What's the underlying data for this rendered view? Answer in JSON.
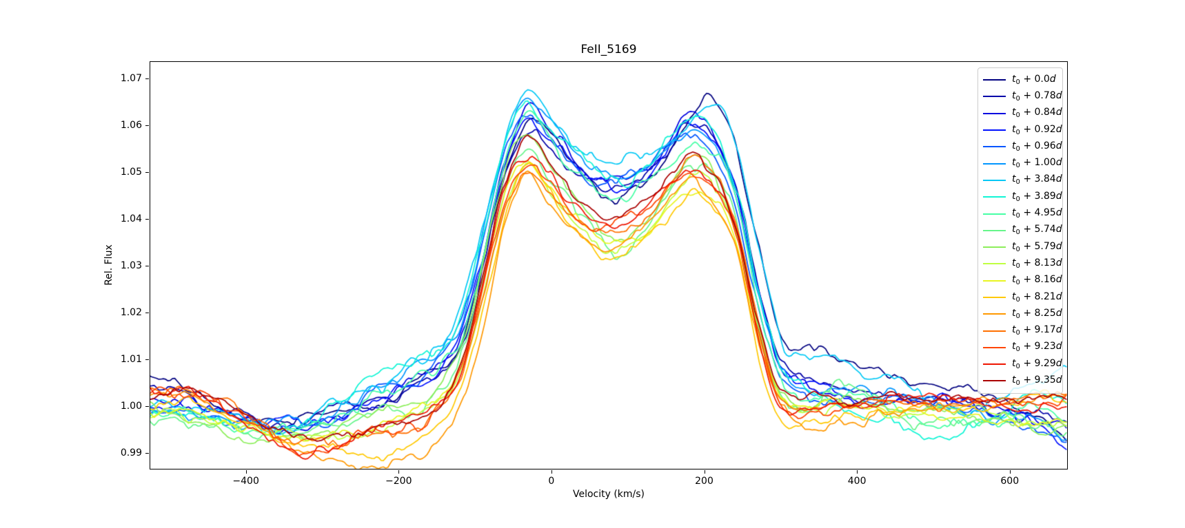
{
  "figure": {
    "title": "FeII_5169"
  },
  "chart_data": {
    "type": "line",
    "title": "FeII_5169",
    "xlabel": "Velocity (km/s)",
    "ylabel": "Rel. Flux",
    "xlim": [
      -526,
      676
    ],
    "ylim": [
      0.9865,
      1.0737
    ],
    "grid": false,
    "legend_position": "upper right",
    "legend_label_format": "t0 + {offset}d",
    "xticks": [
      -400,
      -200,
      0,
      200,
      400,
      600
    ],
    "xtick_labels": [
      "−400",
      "−200",
      "0",
      "200",
      "400",
      "600"
    ],
    "yticks": [
      0.99,
      1.0,
      1.01,
      1.02,
      1.03,
      1.04,
      1.05,
      1.06,
      1.07
    ],
    "ytick_labels": [
      "0.99",
      "1.00",
      "1.01",
      "1.02",
      "1.03",
      "1.04",
      "1.05",
      "1.06",
      "1.07"
    ],
    "x_knots": [
      -526,
      -480,
      -430,
      -380,
      -330,
      -280,
      -230,
      -180,
      -150,
      -120,
      -90,
      -60,
      -30,
      0,
      40,
      80,
      120,
      150,
      180,
      210,
      240,
      270,
      300,
      340,
      380,
      430,
      480,
      530,
      580,
      630,
      676
    ],
    "series": [
      {
        "name": "t0 + 0.0d",
        "offset": "0.0",
        "color": "#000080",
        "noise": 0.0011,
        "seed": 1,
        "values": [
          1.006,
          1.0035,
          0.999,
          0.9968,
          0.9972,
          0.999,
          1.0005,
          1.004,
          1.0065,
          1.012,
          1.03,
          1.051,
          1.0605,
          1.057,
          1.05,
          1.0448,
          1.047,
          1.053,
          1.061,
          1.065,
          1.0555,
          1.035,
          1.015,
          1.012,
          1.009,
          1.006,
          1.004,
          1.003,
          1.0005,
          0.9975,
          0.993
        ]
      },
      {
        "name": "t0 + 0.78d",
        "offset": "0.78",
        "color": "#0000A8",
        "noise": 0.0011,
        "seed": 2,
        "values": [
          1.003,
          1.0015,
          0.9985,
          0.9965,
          0.9968,
          0.9985,
          1.0,
          1.0035,
          1.006,
          1.011,
          1.028,
          1.049,
          1.059,
          1.056,
          1.0495,
          1.0468,
          1.048,
          1.053,
          1.06,
          1.0575,
          1.048,
          1.026,
          1.009,
          1.005,
          1.003,
          1.002,
          1.0015,
          1.001,
          1.0,
          0.9985,
          0.996
        ]
      },
      {
        "name": "t0 + 0.84d",
        "offset": "0.84",
        "color": "#0000E0",
        "noise": 0.0011,
        "seed": 3,
        "values": [
          1.002,
          1.0005,
          0.998,
          0.996,
          0.9965,
          0.9985,
          1.0005,
          1.0045,
          1.0075,
          1.013,
          1.031,
          1.053,
          1.0635,
          1.059,
          1.051,
          1.0483,
          1.0495,
          1.055,
          1.0625,
          1.059,
          1.049,
          1.027,
          1.0095,
          1.0045,
          1.0025,
          1.0018,
          1.001,
          1.0005,
          0.9995,
          0.9975,
          0.994
        ]
      },
      {
        "name": "t0 + 0.92d",
        "offset": "0.92",
        "color": "#0010FF",
        "noise": 0.0011,
        "seed": 4,
        "values": [
          1.001,
          1.0,
          0.9975,
          0.9958,
          0.9962,
          0.998,
          1.0008,
          1.005,
          1.008,
          1.014,
          1.032,
          1.054,
          1.062,
          1.058,
          1.0505,
          1.0475,
          1.049,
          1.0545,
          1.061,
          1.058,
          1.047,
          1.025,
          1.008,
          1.004,
          1.0022,
          1.0012,
          1.0008,
          1.0,
          0.999,
          0.996,
          0.99
        ]
      },
      {
        "name": "t0 + 0.96d",
        "offset": "0.96",
        "color": "#0055FF",
        "noise": 0.0011,
        "seed": 5,
        "values": [
          1.0005,
          0.9995,
          0.9972,
          0.9955,
          0.996,
          0.9985,
          1.0015,
          1.006,
          1.0095,
          1.016,
          1.034,
          1.055,
          1.0615,
          1.0575,
          1.05,
          1.0495,
          1.0505,
          1.055,
          1.058,
          1.0555,
          1.045,
          1.023,
          1.007,
          1.0035,
          1.002,
          1.001,
          1.0005,
          1.0,
          0.9988,
          0.9965,
          0.9935
        ]
      },
      {
        "name": "t0 + 1.00d",
        "offset": "1.00",
        "color": "#0095FF",
        "noise": 0.0012,
        "seed": 6,
        "values": [
          1.0,
          0.999,
          0.997,
          0.9958,
          0.9965,
          0.9995,
          1.003,
          1.008,
          1.011,
          1.018,
          1.036,
          1.056,
          1.064,
          1.059,
          1.051,
          1.049,
          1.051,
          1.0555,
          1.06,
          1.057,
          1.046,
          1.024,
          1.0075,
          1.004,
          1.0025,
          1.0015,
          1.0005,
          0.9998,
          0.9985,
          0.996,
          0.9925
        ]
      },
      {
        "name": "t0 + 3.84d",
        "offset": "3.84",
        "color": "#00C8F5",
        "noise": 0.0013,
        "seed": 7,
        "values": [
          1.0,
          0.9995,
          0.9975,
          0.996,
          0.997,
          1.0005,
          1.005,
          1.0095,
          1.0115,
          1.019,
          1.038,
          1.059,
          1.0685,
          1.062,
          1.053,
          1.0515,
          1.053,
          1.057,
          1.061,
          1.064,
          1.056,
          1.033,
          1.013,
          1.009,
          1.0095,
          1.006,
          1.001,
          0.9985,
          1.001,
          1.006,
          1.0085
        ]
      },
      {
        "name": "t0 + 3.89d",
        "offset": "3.89",
        "color": "#10F5D5",
        "noise": 0.0013,
        "seed": 8,
        "values": [
          0.9985,
          0.998,
          0.9965,
          0.9955,
          0.997,
          1.001,
          1.006,
          1.01,
          1.012,
          1.0185,
          1.037,
          1.058,
          1.0655,
          1.06,
          1.0525,
          1.047,
          1.05,
          1.0555,
          1.06,
          1.0575,
          1.047,
          1.025,
          1.008,
          1.003,
          1.0005,
          0.9975,
          0.9945,
          0.995,
          0.999,
          1.002,
          0.9995
        ]
      },
      {
        "name": "t0 + 4.95d",
        "offset": "4.95",
        "color": "#45FFA5",
        "noise": 0.0013,
        "seed": 9,
        "values": [
          0.999,
          0.9985,
          0.996,
          0.9945,
          0.9955,
          0.999,
          1.003,
          1.007,
          1.009,
          1.015,
          1.033,
          1.054,
          1.0625,
          1.057,
          1.049,
          1.0445,
          1.047,
          1.052,
          1.0565,
          1.0545,
          1.045,
          1.023,
          1.006,
          1.002,
          1.004,
          1.001,
          0.997,
          0.996,
          0.998,
          0.999,
          0.997
        ]
      },
      {
        "name": "t0 + 5.74d",
        "offset": "5.74",
        "color": "#65F58A",
        "noise": 0.0013,
        "seed": 10,
        "values": [
          0.9975,
          0.9965,
          0.9945,
          0.993,
          0.9932,
          0.995,
          0.9975,
          1.0005,
          1.003,
          1.009,
          1.027,
          1.048,
          1.0565,
          1.05,
          1.041,
          1.033,
          1.037,
          1.044,
          1.05,
          1.0485,
          1.039,
          1.017,
          1.002,
          1.0,
          1.006,
          1.002,
          0.998,
          0.9985,
          0.9975,
          0.995,
          0.9935
        ]
      },
      {
        "name": "t0 + 5.79d",
        "offset": "5.79",
        "color": "#8CEE5A",
        "noise": 0.0012,
        "seed": 11,
        "values": [
          0.9985,
          0.9975,
          0.995,
          0.9935,
          0.9938,
          0.9955,
          0.9985,
          1.0015,
          1.004,
          1.0105,
          1.029,
          1.05,
          1.0585,
          1.052,
          1.0425,
          1.036,
          1.0395,
          1.0455,
          1.0525,
          1.0505,
          1.04,
          1.018,
          1.003,
          1.001,
          1.003,
          1.0,
          0.9985,
          0.999,
          0.998,
          0.996,
          0.9945
        ]
      },
      {
        "name": "t0 + 8.13d",
        "offset": "8.13",
        "color": "#BFFF40",
        "noise": 0.0011,
        "seed": 12,
        "values": [
          0.999,
          0.998,
          0.9955,
          0.9935,
          0.9925,
          0.993,
          0.995,
          0.9985,
          1.0005,
          1.006,
          1.023,
          1.044,
          1.053,
          1.0465,
          1.038,
          1.033,
          1.036,
          1.042,
          1.049,
          1.047,
          1.038,
          1.016,
          1.001,
          0.9995,
          1.0,
          0.9995,
          0.999,
          0.9995,
          0.9985,
          0.997,
          0.996
        ]
      },
      {
        "name": "t0 + 8.16d",
        "offset": "8.16",
        "color": "#E8F520",
        "noise": 0.0011,
        "seed": 13,
        "values": [
          1.0,
          0.999,
          0.9965,
          0.9945,
          0.9935,
          0.9938,
          0.9955,
          0.999,
          1.001,
          1.007,
          1.0245,
          1.045,
          1.052,
          1.046,
          1.0385,
          1.035,
          1.038,
          1.043,
          1.0475,
          1.0455,
          1.037,
          1.015,
          1.0005,
          0.999,
          0.9995,
          0.999,
          0.9985,
          0.999,
          0.998,
          0.9975,
          0.997
        ]
      },
      {
        "name": "t0 + 8.21d",
        "offset": "8.21",
        "color": "#FFC800",
        "noise": 0.0011,
        "seed": 14,
        "values": [
          1.001,
          1.0,
          0.998,
          0.995,
          0.9915,
          0.9895,
          0.989,
          0.9905,
          0.994,
          1.002,
          1.019,
          1.04,
          1.051,
          1.044,
          1.036,
          1.031,
          1.034,
          1.039,
          1.044,
          1.042,
          1.034,
          1.012,
          0.998,
          0.996,
          0.997,
          0.9985,
          0.9995,
          1.0,
          1.0005,
          1.001,
          1.0015
        ]
      },
      {
        "name": "t0 + 8.25d",
        "offset": "8.25",
        "color": "#FF9800",
        "noise": 0.0011,
        "seed": 15,
        "values": [
          1.002,
          1.0015,
          0.999,
          0.9955,
          0.991,
          0.9885,
          0.988,
          0.989,
          0.992,
          0.999,
          1.016,
          1.038,
          1.0485,
          1.0425,
          1.0355,
          1.034,
          1.037,
          1.043,
          1.048,
          1.045,
          1.036,
          1.014,
          0.999,
          0.995,
          0.9955,
          0.9975,
          0.999,
          0.9995,
          1.0,
          1.001,
          1.002
        ]
      },
      {
        "name": "t0 + 9.17d",
        "offset": "9.17",
        "color": "#FF7000",
        "noise": 0.0011,
        "seed": 16,
        "values": [
          1.003,
          1.0025,
          1.0,
          0.9965,
          0.9925,
          0.9915,
          0.9935,
          0.9955,
          0.9985,
          1.006,
          1.023,
          1.043,
          1.0495,
          1.045,
          1.039,
          1.037,
          1.04,
          1.046,
          1.054,
          1.051,
          1.041,
          1.019,
          1.002,
          0.999,
          1.0,
          1.0005,
          1.001,
          1.0015,
          1.002,
          1.0015,
          1.001
        ]
      },
      {
        "name": "t0 + 9.23d",
        "offset": "9.23",
        "color": "#FF4500",
        "noise": 0.0011,
        "seed": 17,
        "values": [
          1.0035,
          1.003,
          1.0005,
          0.996,
          0.9905,
          0.992,
          0.994,
          0.996,
          0.999,
          1.007,
          1.025,
          1.045,
          1.052,
          1.047,
          1.04,
          1.0385,
          1.0415,
          1.0465,
          1.0505,
          1.048,
          1.039,
          1.017,
          1.001,
          0.9995,
          1.0005,
          1.001,
          1.0015,
          1.001,
          1.0015,
          1.001,
          1.0005
        ]
      },
      {
        "name": "t0 + 9.29d",
        "offset": "9.29",
        "color": "#EE1500",
        "noise": 0.0011,
        "seed": 18,
        "values": [
          1.0045,
          1.004,
          1.001,
          0.9955,
          0.99,
          0.9915,
          0.9945,
          0.9965,
          0.9995,
          1.008,
          1.027,
          1.0465,
          1.0525,
          1.0475,
          1.0405,
          1.038,
          1.041,
          1.046,
          1.0505,
          1.047,
          1.038,
          1.016,
          1.0005,
          0.999,
          1.0,
          1.001,
          1.0015,
          1.002,
          1.0015,
          1.001,
          1.0
        ]
      },
      {
        "name": "t0 + 9.35d",
        "offset": "9.35",
        "color": "#AA0000",
        "noise": 0.001,
        "seed": 19,
        "values": [
          1.003,
          1.0025,
          1.001,
          0.9975,
          0.993,
          0.9935,
          0.995,
          0.997,
          1.0,
          1.009,
          1.029,
          1.049,
          1.058,
          1.052,
          1.0445,
          1.041,
          1.0435,
          1.048,
          1.053,
          1.05,
          1.04,
          1.018,
          1.003,
          1.001,
          1.0015,
          1.002,
          1.0015,
          1.002,
          1.0015,
          1.001,
          1.0005
        ]
      }
    ]
  }
}
